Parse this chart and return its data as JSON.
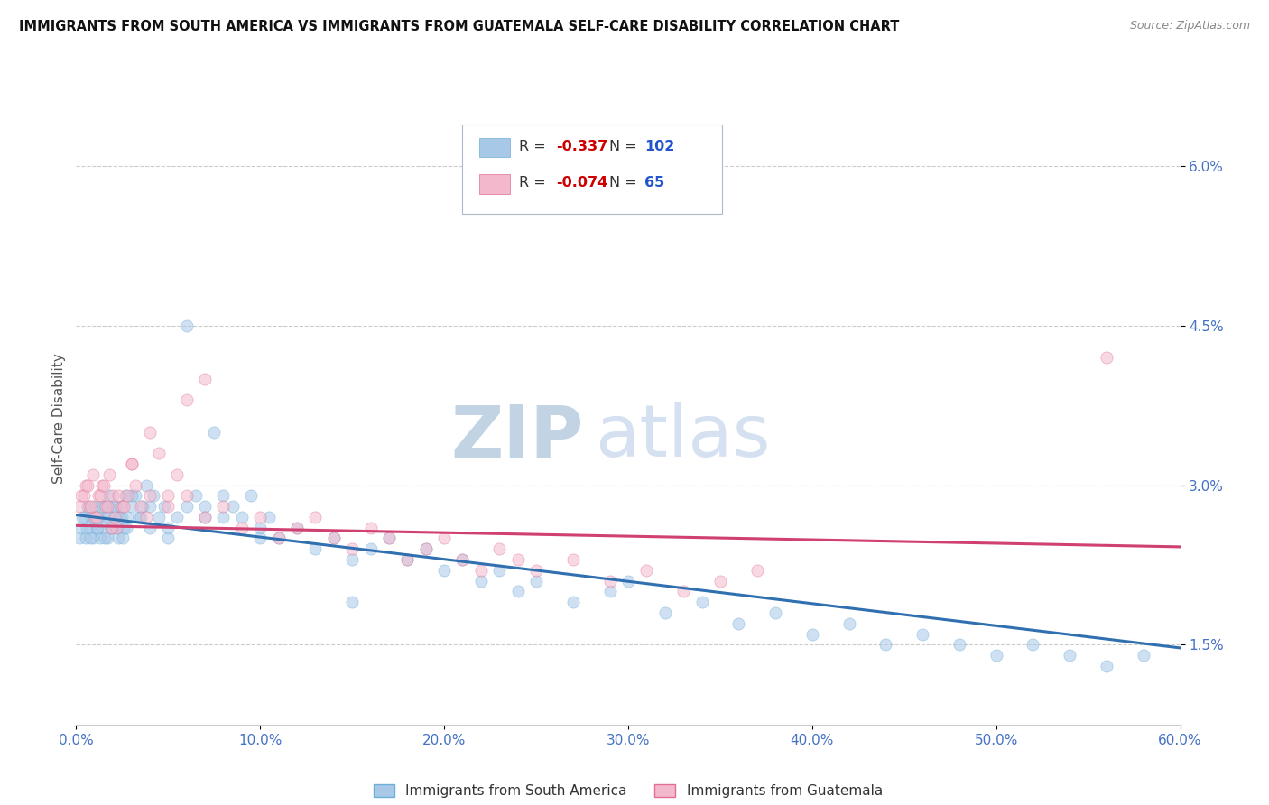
{
  "title": "IMMIGRANTS FROM SOUTH AMERICA VS IMMIGRANTS FROM GUATEMALA SELF-CARE DISABILITY CORRELATION CHART",
  "source": "Source: ZipAtlas.com",
  "ylabel": "Self-Care Disability",
  "series": [
    {
      "name": "Immigrants from South America",
      "R": -0.337,
      "N": 102,
      "color": "#a8c8e8",
      "edge_color": "#6baed6",
      "line_color": "#3070b0",
      "x": [
        0.2,
        0.3,
        0.4,
        0.5,
        0.6,
        0.7,
        0.8,
        0.9,
        1.0,
        1.1,
        1.2,
        1.3,
        1.4,
        1.5,
        1.6,
        1.7,
        1.8,
        1.9,
        2.0,
        2.1,
        2.2,
        2.3,
        2.4,
        2.5,
        2.6,
        2.7,
        2.8,
        3.0,
        3.2,
        3.4,
        3.6,
        3.8,
        4.0,
        4.2,
        4.5,
        4.8,
        5.0,
        5.5,
        6.0,
        6.5,
        7.0,
        7.5,
        8.0,
        8.5,
        9.0,
        9.5,
        10.0,
        10.5,
        11.0,
        12.0,
        13.0,
        14.0,
        15.0,
        16.0,
        17.0,
        18.0,
        19.0,
        20.0,
        21.0,
        22.0,
        23.0,
        24.0,
        25.0,
        27.0,
        29.0,
        30.0,
        32.0,
        34.0,
        36.0,
        38.0,
        40.0,
        42.0,
        44.0,
        46.0,
        48.0,
        50.0,
        52.0,
        54.0,
        56.0,
        58.0,
        0.35,
        0.55,
        0.75,
        0.95,
        1.15,
        1.35,
        1.55,
        1.75,
        1.95,
        2.15,
        2.35,
        2.55,
        2.75,
        3.0,
        3.5,
        4.0,
        5.0,
        6.0,
        7.0,
        8.0,
        10.0,
        15.0
      ],
      "y": [
        2.5,
        2.6,
        2.7,
        2.5,
        2.8,
        2.6,
        2.7,
        2.5,
        2.8,
        2.6,
        2.7,
        2.5,
        2.6,
        2.8,
        2.7,
        2.5,
        2.9,
        2.6,
        2.8,
        2.7,
        2.6,
        2.5,
        2.8,
        2.7,
        2.6,
        2.9,
        2.7,
        2.8,
        2.9,
        2.7,
        2.8,
        3.0,
        2.8,
        2.9,
        2.7,
        2.8,
        2.6,
        2.7,
        2.8,
        2.9,
        2.7,
        3.5,
        2.9,
        2.8,
        2.7,
        2.9,
        2.6,
        2.7,
        2.5,
        2.6,
        2.4,
        2.5,
        2.3,
        2.4,
        2.5,
        2.3,
        2.4,
        2.2,
        2.3,
        2.1,
        2.2,
        2.0,
        2.1,
        1.9,
        2.0,
        2.1,
        1.8,
        1.9,
        1.7,
        1.8,
        1.6,
        1.7,
        1.5,
        1.6,
        1.5,
        1.4,
        1.5,
        1.4,
        1.3,
        1.4,
        2.7,
        2.6,
        2.5,
        2.7,
        2.6,
        2.8,
        2.5,
        2.7,
        2.6,
        2.8,
        2.7,
        2.5,
        2.6,
        2.9,
        2.7,
        2.6,
        2.5,
        4.5,
        2.8,
        2.7,
        2.5,
        1.9
      ]
    },
    {
      "name": "Immigrants from Guatemala",
      "R": -0.074,
      "N": 65,
      "color": "#f4b8cc",
      "edge_color": "#e07090",
      "line_color": "#d04070",
      "x": [
        0.2,
        0.3,
        0.5,
        0.7,
        0.9,
        1.0,
        1.2,
        1.4,
        1.6,
        1.8,
        2.0,
        2.2,
        2.5,
        2.8,
        3.0,
        3.2,
        3.5,
        3.8,
        4.0,
        4.5,
        5.0,
        5.5,
        6.0,
        7.0,
        8.0,
        9.0,
        10.0,
        11.0,
        12.0,
        13.0,
        14.0,
        15.0,
        16.0,
        17.0,
        18.0,
        19.0,
        20.0,
        21.0,
        22.0,
        23.0,
        24.0,
        25.0,
        27.0,
        29.0,
        31.0,
        33.0,
        35.0,
        37.0,
        56.0,
        0.4,
        0.6,
        0.8,
        1.1,
        1.3,
        1.5,
        1.7,
        1.9,
        2.1,
        2.3,
        2.6,
        3.0,
        4.0,
        5.0,
        6.0,
        7.0
      ],
      "y": [
        2.8,
        2.9,
        3.0,
        2.8,
        3.1,
        2.7,
        2.9,
        3.0,
        2.8,
        3.1,
        2.9,
        2.6,
        2.8,
        2.9,
        3.2,
        3.0,
        2.8,
        2.7,
        2.9,
        3.3,
        2.8,
        3.1,
        2.9,
        2.7,
        2.8,
        2.6,
        2.7,
        2.5,
        2.6,
        2.7,
        2.5,
        2.4,
        2.6,
        2.5,
        2.3,
        2.4,
        2.5,
        2.3,
        2.2,
        2.4,
        2.3,
        2.2,
        2.3,
        2.1,
        2.2,
        2.0,
        2.1,
        2.2,
        4.2,
        2.9,
        3.0,
        2.8,
        2.7,
        2.9,
        3.0,
        2.8,
        2.6,
        2.7,
        2.9,
        2.8,
        3.2,
        3.5,
        2.9,
        3.8,
        4.0
      ]
    }
  ],
  "trend_lines": [
    {
      "x_start": 0,
      "y_start": 2.72,
      "x_end": 60,
      "y_end": 1.47
    },
    {
      "x_start": 0,
      "y_start": 2.62,
      "x_end": 60,
      "y_end": 2.42
    }
  ],
  "xlim": [
    0,
    60
  ],
  "ylim": [
    0.75,
    6.5
  ],
  "yticks": [
    1.5,
    3.0,
    4.5,
    6.0
  ],
  "xticks": [
    0,
    10,
    20,
    30,
    40,
    50,
    60
  ],
  "xtick_labels": [
    "0.0%",
    "10.0%",
    "20.0%",
    "30.0%",
    "40.0%",
    "50.0%",
    "60.0%"
  ],
  "ytick_labels": [
    "1.5%",
    "3.0%",
    "4.5%",
    "6.0%"
  ],
  "watermark_zip": "ZIP",
  "watermark_atlas": "atlas",
  "watermark_color": "#c8d8ec",
  "title_color": "#111111",
  "axis_label_color": "#4472c4",
  "legend_R_color": "#cc0000",
  "legend_N_color": "#2255cc",
  "background_color": "#ffffff",
  "grid_color": "#cccccc",
  "scatter_alpha": 0.55,
  "scatter_size": 90
}
